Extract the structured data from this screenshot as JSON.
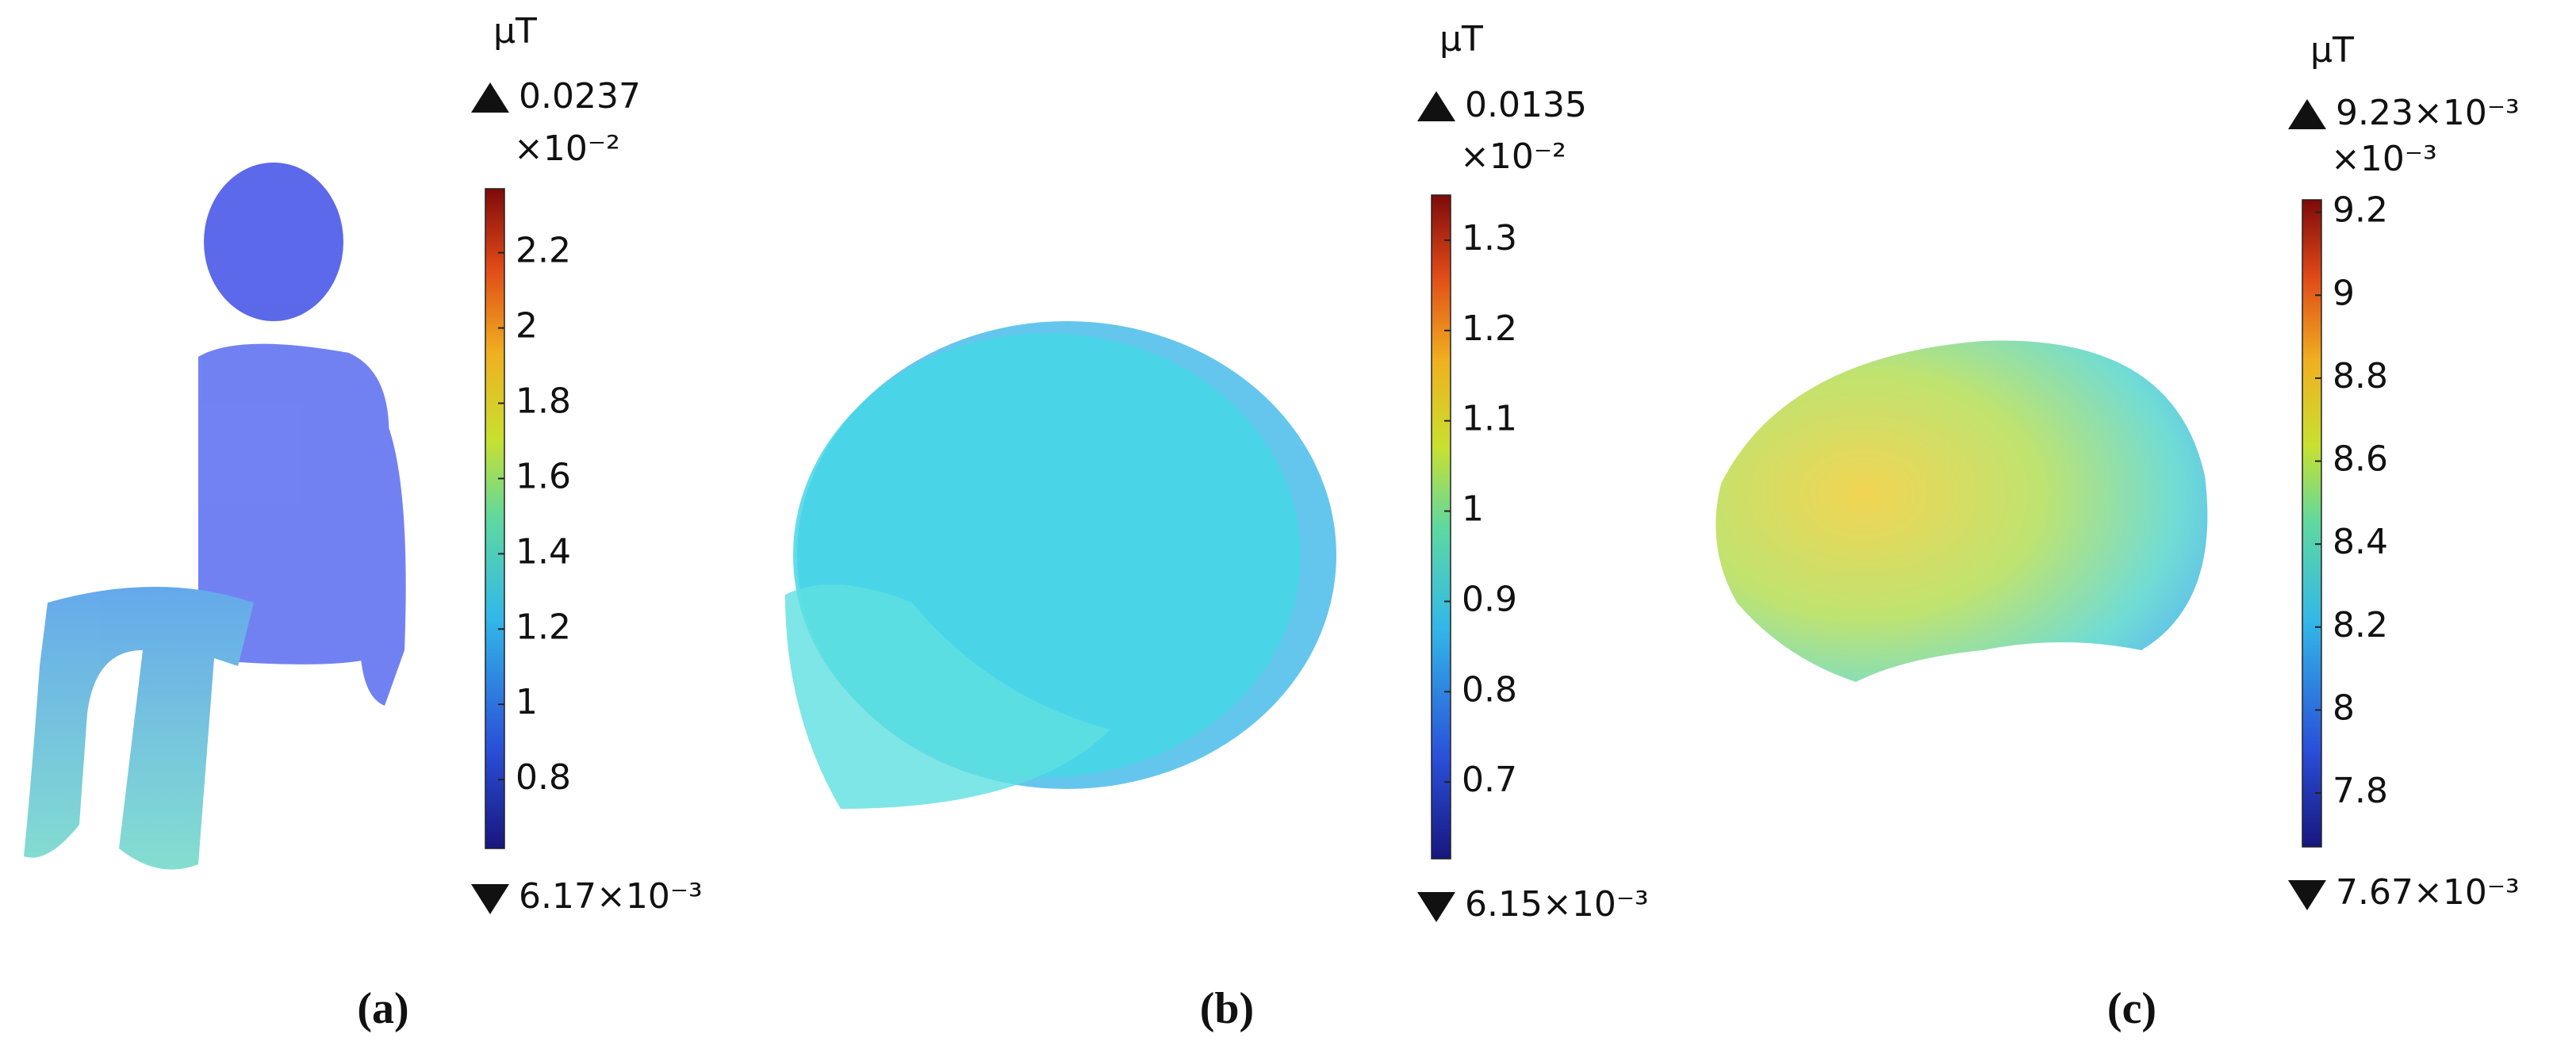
{
  "chart_data": [
    {
      "type": "colorbar",
      "unit": "μT",
      "max_label": "0.0237",
      "multiplier": "×10⁻²",
      "min_label": "6.17×10⁻³",
      "ylim": [
        0.617,
        2.37
      ],
      "yticks": [
        0.8,
        1,
        1.2,
        1.4,
        1.6,
        1.8,
        2,
        2.2
      ],
      "caption": "(a)"
    },
    {
      "type": "colorbar",
      "unit": "μT",
      "max_label": "0.0135",
      "multiplier": "×10⁻²",
      "min_label": "6.15×10⁻³",
      "ylim": [
        0.615,
        1.35
      ],
      "yticks": [
        0.7,
        0.8,
        0.9,
        1,
        1.1,
        1.2,
        1.3
      ],
      "caption": "(b)"
    },
    {
      "type": "colorbar",
      "unit": "μT",
      "max_label": "9.23×10⁻³",
      "multiplier": "×10⁻³",
      "min_label": "7.67×10⁻³",
      "ylim": [
        7.67,
        9.23
      ],
      "yticks": [
        7.8,
        8,
        8.2,
        8.4,
        8.6,
        8.8,
        9,
        9.2
      ],
      "caption": "(c)"
    }
  ]
}
